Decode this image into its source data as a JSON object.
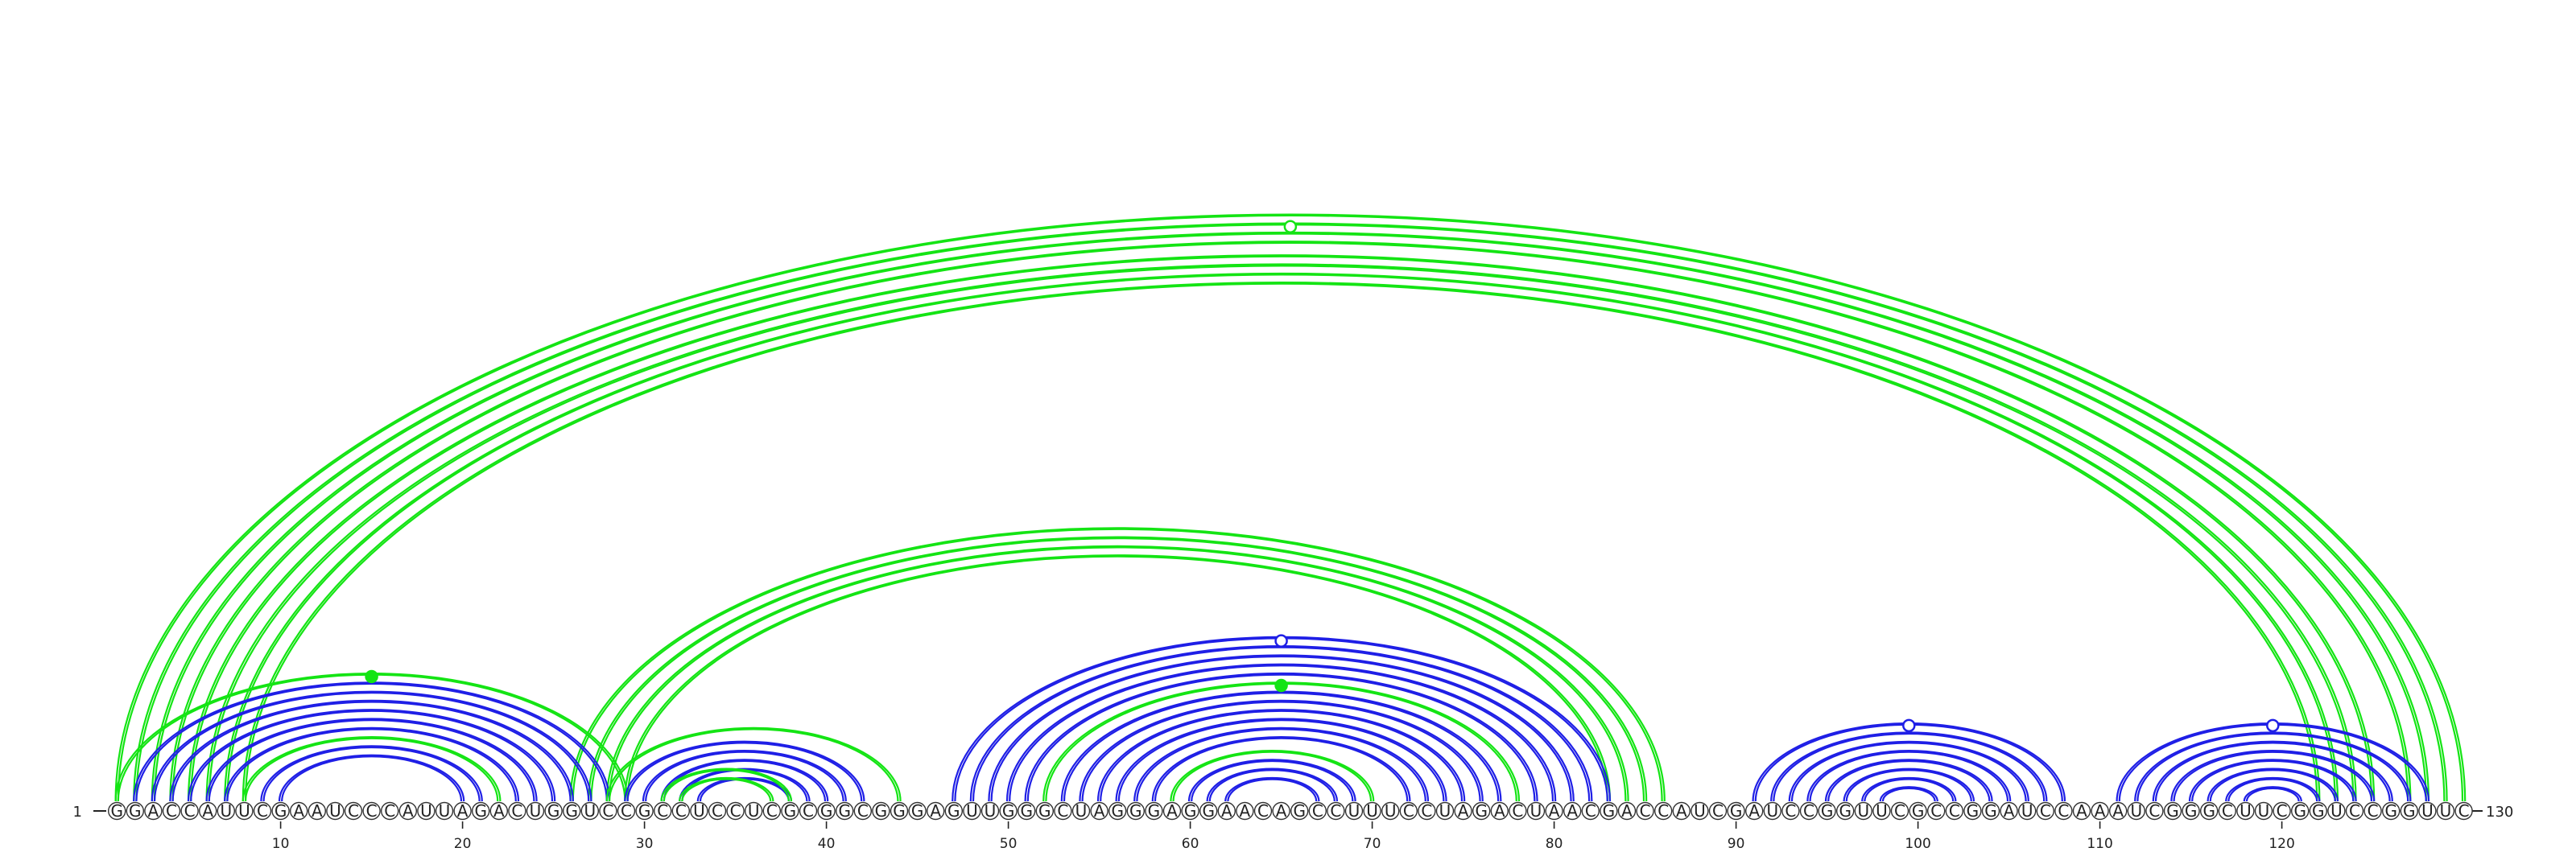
{
  "sequence": "GGACCAUUCGAAUCCCAUUAGACUGGUCCGCCUCCUCGCGGCGGGAGUUGGGCUAGGGAGGAACAGCCUUUCCUAGACUAACGACCAUCGAUCCGGUUCGCCGGAUCCAAAUCGGGCUUCGGUCCGGUUC",
  "start_label": "1",
  "end_label": "130",
  "ticks": [
    "10",
    "20",
    "30",
    "40",
    "50",
    "60",
    "70",
    "80",
    "90",
    "100",
    "110",
    "120"
  ],
  "colors": {
    "blue": "#1f1fe6",
    "green": "#14e414",
    "text": "#222222"
  },
  "helices": [
    {
      "color": "green",
      "pairs": [
        [
          1,
          130
        ],
        [
          2,
          129
        ],
        [
          5,
          125
        ],
        [
          6,
          124
        ],
        [
          4,
          127
        ],
        [
          3,
          128
        ],
        [
          7,
          123
        ],
        [
          8,
          122
        ]
      ],
      "marker": {
        "type": "open"
      }
    },
    {
      "color": "green",
      "pairs": [
        [
          26,
          86
        ],
        [
          27,
          85
        ],
        [
          28,
          84
        ],
        [
          29,
          83
        ]
      ]
    },
    {
      "color": "blue",
      "pairs": [
        [
          2,
          28
        ],
        [
          3,
          27
        ],
        [
          4,
          26
        ],
        [
          5,
          25
        ],
        [
          6,
          24
        ],
        [
          7,
          23
        ],
        [
          9,
          21
        ],
        [
          10,
          20
        ]
      ]
    },
    {
      "color": "green",
      "pairs": [
        [
          1,
          29
        ],
        [
          8,
          22
        ]
      ],
      "marker": {
        "type": "filled"
      }
    },
    {
      "color": "blue",
      "pairs": [
        [
          29,
          42
        ],
        [
          30,
          41
        ],
        [
          31,
          40
        ],
        [
          32,
          39
        ],
        [
          33,
          38
        ]
      ]
    },
    {
      "color": "green",
      "pairs": [
        [
          28,
          44
        ],
        [
          31,
          38
        ],
        [
          32,
          37
        ]
      ]
    },
    {
      "color": "blue",
      "pairs": [
        [
          47,
          83
        ],
        [
          48,
          82
        ],
        [
          49,
          81
        ],
        [
          50,
          80
        ],
        [
          51,
          79
        ],
        [
          53,
          77
        ],
        [
          54,
          76
        ],
        [
          55,
          75
        ],
        [
          56,
          74
        ],
        [
          57,
          73
        ],
        [
          58,
          72
        ],
        [
          60,
          69
        ],
        [
          61,
          68
        ],
        [
          62,
          67
        ]
      ],
      "marker": {
        "type": "open"
      }
    },
    {
      "color": "green",
      "pairs": [
        [
          52,
          78
        ],
        [
          59,
          70
        ]
      ],
      "marker": {
        "type": "filled"
      }
    },
    {
      "color": "blue",
      "pairs": [
        [
          91,
          108
        ],
        [
          92,
          107
        ],
        [
          93,
          106
        ],
        [
          94,
          105
        ],
        [
          95,
          104
        ],
        [
          96,
          103
        ],
        [
          97,
          102
        ],
        [
          98,
          101
        ]
      ],
      "marker": {
        "type": "open"
      }
    },
    {
      "color": "blue",
      "pairs": [
        [
          111,
          128
        ],
        [
          112,
          127
        ],
        [
          113,
          126
        ],
        [
          114,
          125
        ],
        [
          115,
          124
        ],
        [
          116,
          123
        ],
        [
          117,
          122
        ],
        [
          118,
          121
        ]
      ],
      "marker": {
        "type": "open"
      }
    }
  ]
}
